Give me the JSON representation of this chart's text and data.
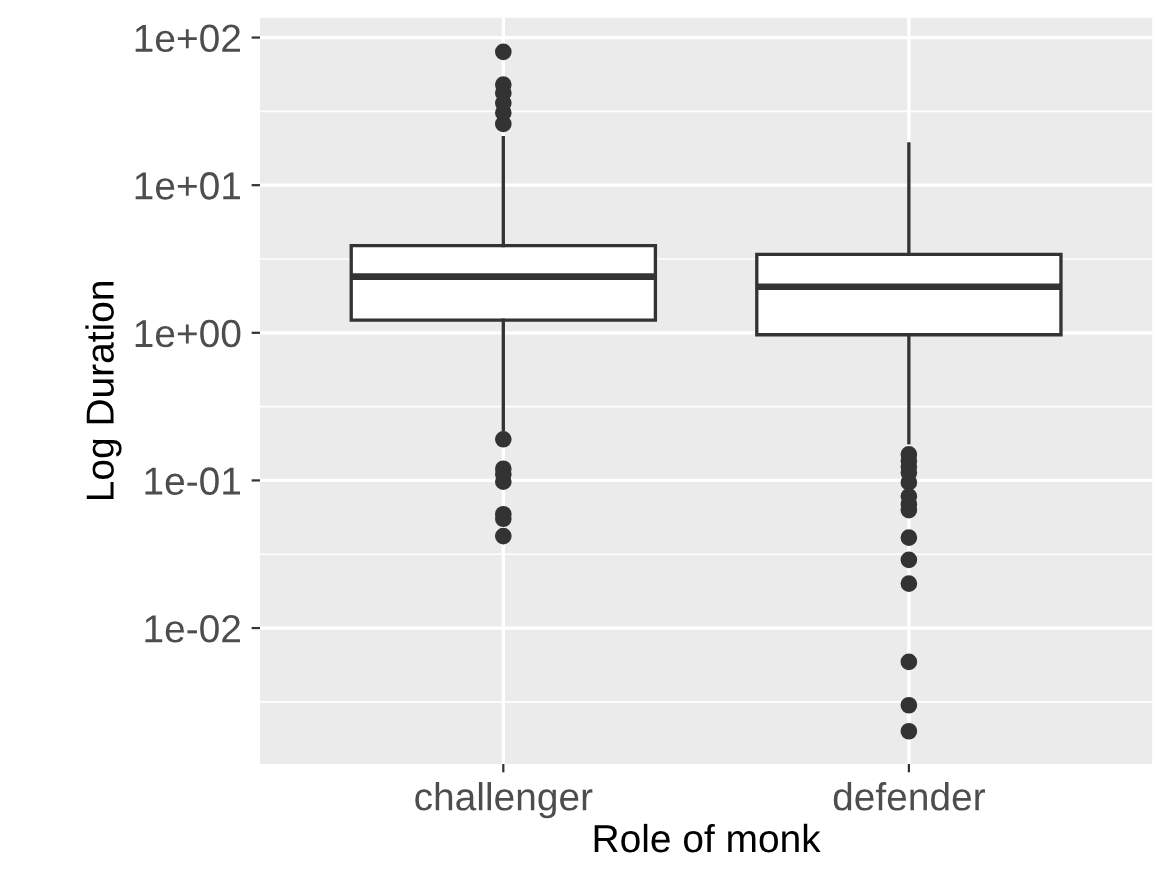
{
  "chart_data": {
    "type": "box",
    "xlabel": "Role of monk",
    "ylabel": "Log Duration",
    "categories": [
      "challenger",
      "defender"
    ],
    "log": "y",
    "grid": true,
    "ylim": [
      0.0012,
      136
    ],
    "yticks": [
      {
        "value": 0.01,
        "label": "1e-02"
      },
      {
        "value": 0.1,
        "label": "1e-01"
      },
      {
        "value": 1,
        "label": "1e+00"
      },
      {
        "value": 10,
        "label": "1e+01"
      },
      {
        "value": 100,
        "label": "1e+02"
      }
    ],
    "boxes": [
      {
        "low": 0.22,
        "q1": 1.22,
        "median": 2.4,
        "q3": 3.9,
        "high": 21,
        "outliers": [
          80,
          48,
          42,
          36,
          31,
          26,
          0.19,
          0.12,
          0.11,
          0.098,
          0.059,
          0.055,
          0.042
        ]
      },
      {
        "low": 0.18,
        "q1": 0.97,
        "median": 2.05,
        "q3": 3.4,
        "high": 19,
        "outliers": [
          0.15,
          0.136,
          0.124,
          0.113,
          0.097,
          0.078,
          0.069,
          0.063,
          0.041,
          0.029,
          0.02,
          0.0059,
          0.003,
          0.002
        ]
      }
    ]
  }
}
